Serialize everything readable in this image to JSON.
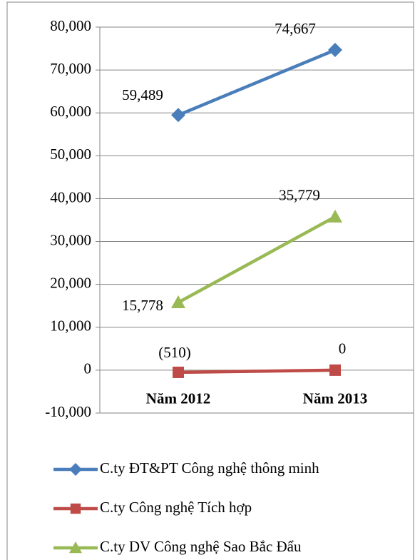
{
  "chart_data": {
    "type": "line",
    "categories": [
      "Năm 2012",
      "Năm 2013"
    ],
    "series": [
      {
        "name": "C.ty ĐT&PT Công nghệ thông minh",
        "color": "#4a7ebb",
        "marker": "diamond",
        "values": [
          59489,
          74667
        ],
        "value_labels": [
          "59,489",
          "74,667"
        ]
      },
      {
        "name": "C.ty Công nghệ Tích hợp",
        "color": "#be4b48",
        "marker": "square",
        "values": [
          -510,
          0
        ],
        "value_labels": [
          "(510)",
          "0"
        ]
      },
      {
        "name": "C.ty DV Công nghệ Sao Bắc Đẩu",
        "color": "#98b954",
        "marker": "triangle",
        "values": [
          15778,
          35779
        ],
        "value_labels": [
          "15,778",
          "35,779"
        ]
      }
    ],
    "ylim": [
      -10000,
      80000
    ],
    "yticks": [
      {
        "value": -10000,
        "label": "-10,000"
      },
      0,
      {
        "value": 10000,
        "label": "10,000"
      },
      {
        "value": 20000,
        "label": "20,000"
      },
      {
        "value": 30000,
        "label": "30,000"
      },
      {
        "value": 40000,
        "label": "40,000"
      },
      {
        "value": 50000,
        "label": "50,000"
      },
      {
        "value": 60000,
        "label": "60,000"
      },
      {
        "value": 70000,
        "label": "70,000"
      },
      {
        "value": 80000,
        "label": "80,000"
      }
    ],
    "grid": true,
    "legend": "bottom"
  }
}
